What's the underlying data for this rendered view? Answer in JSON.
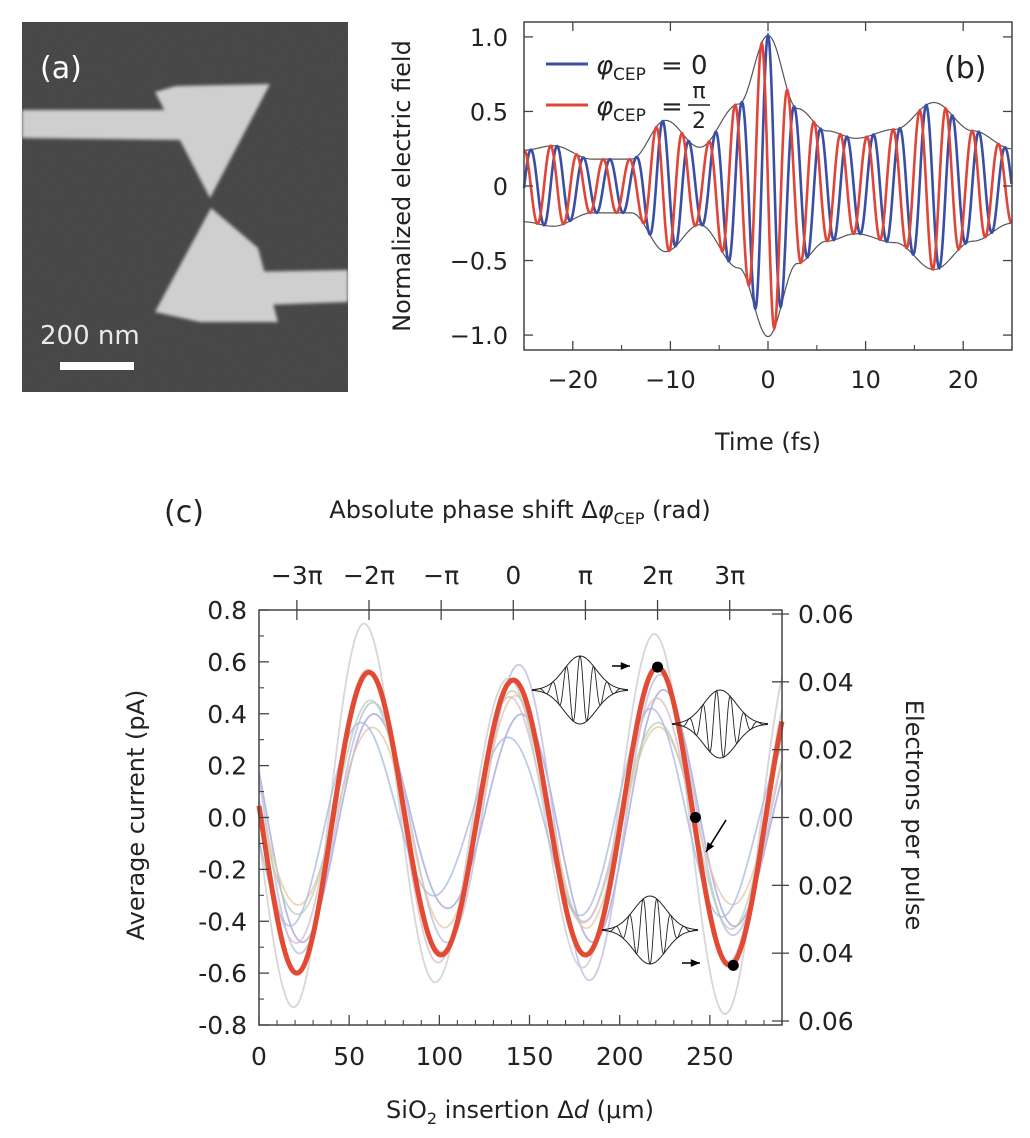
{
  "panel_labels": {
    "a": "(a)",
    "b": "(b)",
    "c": "(c)"
  },
  "panel_a": {
    "scale_bar_label": "200 nm"
  },
  "chart_data": [
    {
      "id": "b",
      "type": "line",
      "xlabel": "Time (fs)",
      "ylabel": "Normalized electric field",
      "xlim": [
        -25,
        25
      ],
      "ylim": [
        -1.1,
        1.1
      ],
      "xticks": [
        -20,
        -10,
        0,
        10,
        20
      ],
      "xtick_labels": [
        "−20",
        "−10",
        "0",
        "10",
        "20"
      ],
      "yticks": [
        1.0,
        0.5,
        0,
        -0.5,
        -1.0
      ],
      "ytick_labels": [
        "1.0",
        "0.5",
        "0",
        "−0.5",
        "−1.0"
      ],
      "legend_position": "top-left",
      "series": [
        {
          "name": "φCEP = 0",
          "legend_main": "φ",
          "legend_sub": "CEP",
          "legend_rhs": "= 0",
          "color": "#3a4fa3",
          "cep": 0
        },
        {
          "name": "φCEP = π/2",
          "legend_main": "φ",
          "legend_sub": "CEP",
          "legend_rhs": "=",
          "legend_num": "π",
          "legend_den": "2",
          "color": "#e0453a",
          "cep": 1.5708
        }
      ],
      "envelope_peaks": {
        "t": [
          -25,
          -22,
          -18,
          -14,
          -10.5,
          -7,
          -3,
          0,
          3,
          6,
          9,
          13,
          17,
          21,
          25
        ],
        "a": [
          0.24,
          0.27,
          0.18,
          0.18,
          0.44,
          0.26,
          0.55,
          1.01,
          0.52,
          0.37,
          0.32,
          0.38,
          0.56,
          0.37,
          0.25
        ]
      },
      "carrier_period_fs": 2.7,
      "grid": false
    },
    {
      "id": "c",
      "type": "line",
      "xlabel": "SiO₂ insertion Δd (μm)",
      "xlabel_pre": "SiO",
      "xlabel_sub": "2",
      "xlabel_post": " insertion Δ",
      "xlabel_var": "d",
      "xlabel_unit": " (μm)",
      "ylabel": "Average current (pA)",
      "y2label": "Electrons per pulse",
      "toplabel": "Absolute phase shift ΔφCEP (rad)",
      "toplabel_pre": "Absolute phase shift Δ",
      "toplabel_var": "φ",
      "toplabel_sub": "CEP",
      "toplabel_post": " (rad)",
      "xlim": [
        0,
        290
      ],
      "ylim": [
        -0.8,
        0.8
      ],
      "xticks": [
        0,
        50,
        100,
        150,
        200,
        250
      ],
      "xtick_labels": [
        "0",
        "50",
        "100",
        "150",
        "200",
        "250"
      ],
      "yticks": [
        0.8,
        0.6,
        0.4,
        0.2,
        0.0,
        -0.2,
        -0.4,
        -0.6,
        -0.8
      ],
      "ytick_labels": [
        "0.8",
        "0.6",
        "0.4",
        "0.2",
        "0.0",
        "-0.2",
        "-0.4",
        "-0.6",
        "-0.8"
      ],
      "y2ticks": [
        0.06,
        0.04,
        0.02,
        0.0,
        0.02,
        0.04,
        0.06
      ],
      "y2tick_labels": [
        "0.06",
        "0.04",
        "0.02",
        "0.00",
        "0.02",
        "0.04",
        "0.06"
      ],
      "top_ticks": [
        21,
        61,
        101,
        141,
        181,
        221,
        261
      ],
      "top_tick_labels": [
        "−3π",
        "−2π",
        "−π",
        "0",
        "π",
        "2π",
        "3π"
      ],
      "period_um": 80,
      "phase_ref_um": 141,
      "mean_curve": {
        "name": "average",
        "color": "#e24a33",
        "amplitude_x": [
          0,
          20,
          60,
          100,
          140,
          180,
          220,
          262,
          290
        ],
        "amplitude_y": [
          0.58,
          0.6,
          0.56,
          0.53,
          0.53,
          0.53,
          0.58,
          0.57,
          0.57
        ]
      },
      "individual_runs": [
        {
          "color": "#9fa3d8",
          "amp": 0.5
        },
        {
          "color": "#b8b8e0",
          "amp": 0.63
        },
        {
          "color": "#e7c7a3",
          "amp": 0.47
        },
        {
          "color": "#b7d0b0",
          "amp": 0.52
        },
        {
          "color": "#d9b9c9",
          "amp": 0.58
        },
        {
          "color": "#c9c9c9",
          "amp": 0.76
        },
        {
          "color": "#a7b9e0",
          "amp": 0.42
        }
      ],
      "markers": [
        {
          "x": 221,
          "y": 0.58
        },
        {
          "x": 242,
          "y": 0.0
        },
        {
          "x": 263,
          "y": -0.57
        }
      ],
      "grid": false
    }
  ]
}
